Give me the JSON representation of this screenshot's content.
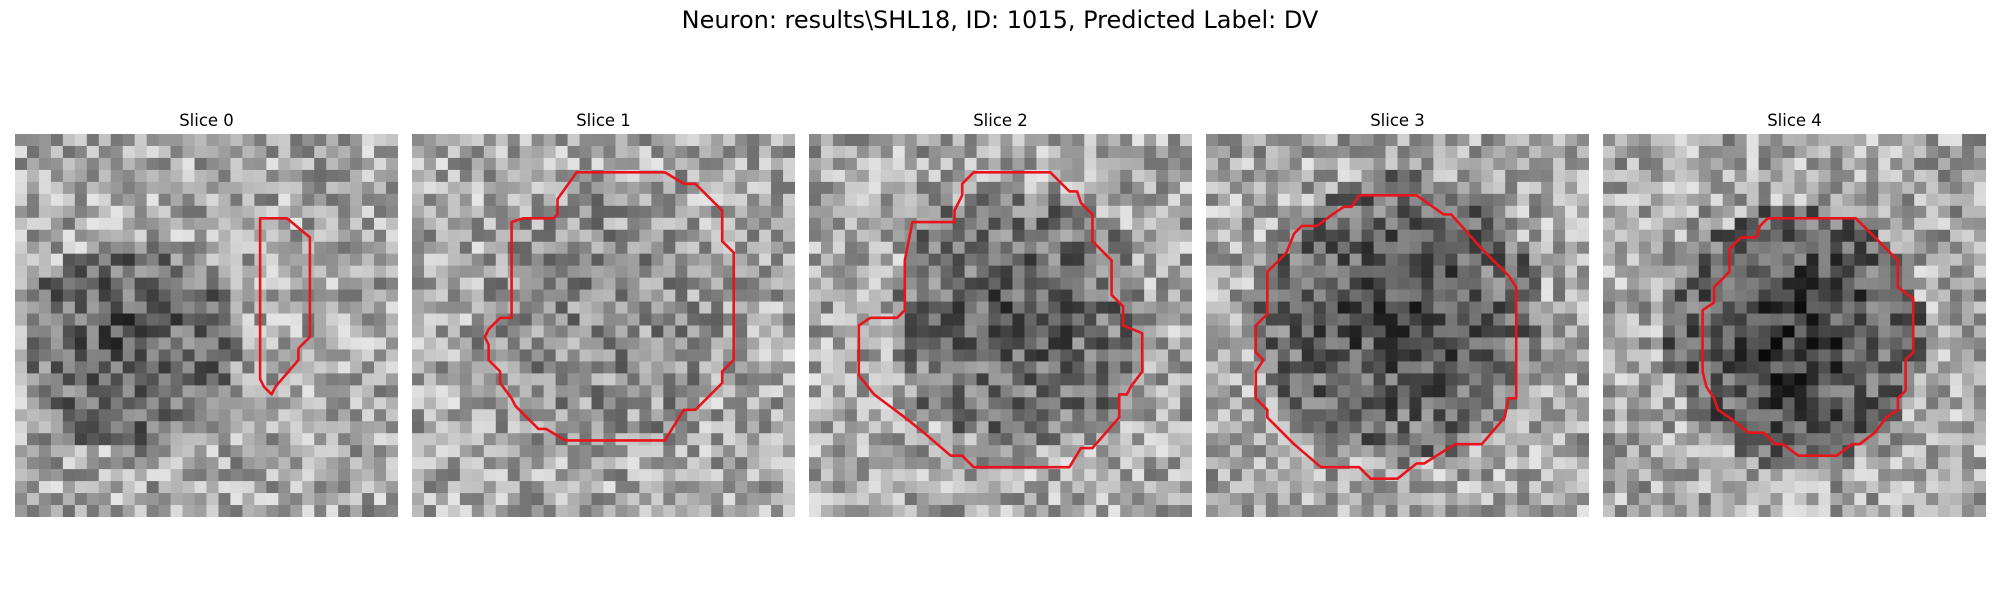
{
  "figure": {
    "suptitle": "Neuron: results\\SHL18, ID: 1015, Predicted Label: DV"
  },
  "panels": [
    {
      "title": "Slice 0",
      "seed": 11,
      "dark_center": [
        0.3,
        0.55
      ],
      "dark_radius": 0.28,
      "dark_strength": 0.35,
      "contour": [
        [
          0.64,
          0.22
        ],
        [
          0.71,
          0.22
        ],
        [
          0.77,
          0.27
        ],
        [
          0.77,
          0.53
        ],
        [
          0.74,
          0.56
        ],
        [
          0.74,
          0.59
        ],
        [
          0.68,
          0.66
        ],
        [
          0.67,
          0.68
        ],
        [
          0.65,
          0.66
        ],
        [
          0.64,
          0.64
        ]
      ]
    },
    {
      "title": "Slice 1",
      "seed": 23,
      "dark_center": [
        0.5,
        0.5
      ],
      "dark_radius": 0.34,
      "dark_strength": 0.12,
      "contour": [
        [
          0.43,
          0.1
        ],
        [
          0.66,
          0.1
        ],
        [
          0.71,
          0.13
        ],
        [
          0.74,
          0.13
        ],
        [
          0.81,
          0.2
        ],
        [
          0.81,
          0.28
        ],
        [
          0.84,
          0.31
        ],
        [
          0.84,
          0.59
        ],
        [
          0.81,
          0.62
        ],
        [
          0.81,
          0.65
        ],
        [
          0.74,
          0.72
        ],
        [
          0.71,
          0.72
        ],
        [
          0.66,
          0.8
        ],
        [
          0.4,
          0.8
        ],
        [
          0.35,
          0.77
        ],
        [
          0.33,
          0.77
        ],
        [
          0.27,
          0.71
        ],
        [
          0.26,
          0.69
        ],
        [
          0.23,
          0.65
        ],
        [
          0.23,
          0.62
        ],
        [
          0.2,
          0.59
        ],
        [
          0.2,
          0.55
        ],
        [
          0.19,
          0.53
        ],
        [
          0.2,
          0.51
        ],
        [
          0.23,
          0.48
        ],
        [
          0.26,
          0.48
        ],
        [
          0.26,
          0.23
        ],
        [
          0.29,
          0.22
        ],
        [
          0.37,
          0.22
        ],
        [
          0.38,
          0.21
        ],
        [
          0.38,
          0.17
        ]
      ]
    },
    {
      "title": "Slice 2",
      "seed": 37,
      "dark_center": [
        0.55,
        0.48
      ],
      "dark_radius": 0.34,
      "dark_strength": 0.32,
      "contour": [
        [
          0.43,
          0.1
        ],
        [
          0.63,
          0.1
        ],
        [
          0.68,
          0.15
        ],
        [
          0.7,
          0.15
        ],
        [
          0.71,
          0.18
        ],
        [
          0.74,
          0.21
        ],
        [
          0.74,
          0.28
        ],
        [
          0.79,
          0.33
        ],
        [
          0.79,
          0.42
        ],
        [
          0.82,
          0.45
        ],
        [
          0.82,
          0.5
        ],
        [
          0.87,
          0.52
        ],
        [
          0.87,
          0.62
        ],
        [
          0.84,
          0.66
        ],
        [
          0.83,
          0.68
        ],
        [
          0.81,
          0.68
        ],
        [
          0.81,
          0.74
        ],
        [
          0.74,
          0.82
        ],
        [
          0.71,
          0.82
        ],
        [
          0.68,
          0.87
        ],
        [
          0.43,
          0.87
        ],
        [
          0.4,
          0.84
        ],
        [
          0.37,
          0.84
        ],
        [
          0.3,
          0.78
        ],
        [
          0.25,
          0.74
        ],
        [
          0.17,
          0.68
        ],
        [
          0.13,
          0.63
        ],
        [
          0.13,
          0.5
        ],
        [
          0.16,
          0.48
        ],
        [
          0.23,
          0.48
        ],
        [
          0.25,
          0.46
        ],
        [
          0.25,
          0.33
        ],
        [
          0.27,
          0.23
        ],
        [
          0.38,
          0.23
        ],
        [
          0.38,
          0.2
        ],
        [
          0.4,
          0.16
        ],
        [
          0.4,
          0.13
        ]
      ]
    },
    {
      "title": "Slice 3",
      "seed": 53,
      "dark_center": [
        0.5,
        0.48
      ],
      "dark_radius": 0.38,
      "dark_strength": 0.38,
      "contour": [
        [
          0.4,
          0.16
        ],
        [
          0.55,
          0.16
        ],
        [
          0.62,
          0.21
        ],
        [
          0.64,
          0.21
        ],
        [
          0.72,
          0.3
        ],
        [
          0.75,
          0.33
        ],
        [
          0.79,
          0.37
        ],
        [
          0.81,
          0.4
        ],
        [
          0.81,
          0.69
        ],
        [
          0.79,
          0.69
        ],
        [
          0.78,
          0.74
        ],
        [
          0.72,
          0.81
        ],
        [
          0.65,
          0.81
        ],
        [
          0.57,
          0.86
        ],
        [
          0.55,
          0.86
        ],
        [
          0.5,
          0.9
        ],
        [
          0.43,
          0.9
        ],
        [
          0.4,
          0.87
        ],
        [
          0.3,
          0.87
        ],
        [
          0.23,
          0.81
        ],
        [
          0.16,
          0.74
        ],
        [
          0.16,
          0.72
        ],
        [
          0.13,
          0.69
        ],
        [
          0.13,
          0.62
        ],
        [
          0.15,
          0.59
        ],
        [
          0.13,
          0.57
        ],
        [
          0.13,
          0.5
        ],
        [
          0.16,
          0.47
        ],
        [
          0.16,
          0.36
        ],
        [
          0.19,
          0.33
        ],
        [
          0.21,
          0.31
        ],
        [
          0.23,
          0.26
        ],
        [
          0.25,
          0.24
        ],
        [
          0.29,
          0.24
        ],
        [
          0.33,
          0.21
        ],
        [
          0.36,
          0.19
        ],
        [
          0.38,
          0.19
        ]
      ]
    },
    {
      "title": "Slice 4",
      "seed": 71,
      "dark_center": [
        0.5,
        0.53
      ],
      "dark_radius": 0.34,
      "dark_strength": 0.45,
      "contour": [
        [
          0.43,
          0.22
        ],
        [
          0.66,
          0.22
        ],
        [
          0.72,
          0.28
        ],
        [
          0.74,
          0.3
        ],
        [
          0.77,
          0.33
        ],
        [
          0.77,
          0.4
        ],
        [
          0.81,
          0.43
        ],
        [
          0.81,
          0.57
        ],
        [
          0.79,
          0.59
        ],
        [
          0.79,
          0.67
        ],
        [
          0.77,
          0.69
        ],
        [
          0.77,
          0.72
        ],
        [
          0.74,
          0.74
        ],
        [
          0.71,
          0.78
        ],
        [
          0.67,
          0.81
        ],
        [
          0.65,
          0.81
        ],
        [
          0.61,
          0.84
        ],
        [
          0.51,
          0.84
        ],
        [
          0.47,
          0.81
        ],
        [
          0.45,
          0.81
        ],
        [
          0.42,
          0.78
        ],
        [
          0.38,
          0.78
        ],
        [
          0.33,
          0.74
        ],
        [
          0.3,
          0.72
        ],
        [
          0.29,
          0.69
        ],
        [
          0.27,
          0.66
        ],
        [
          0.26,
          0.62
        ],
        [
          0.26,
          0.46
        ],
        [
          0.29,
          0.44
        ],
        [
          0.29,
          0.4
        ],
        [
          0.33,
          0.36
        ],
        [
          0.33,
          0.3
        ],
        [
          0.36,
          0.27
        ],
        [
          0.4,
          0.27
        ],
        [
          0.41,
          0.24
        ]
      ]
    }
  ],
  "style": {
    "contour_color": "#e8141c",
    "grid_size": 32
  }
}
